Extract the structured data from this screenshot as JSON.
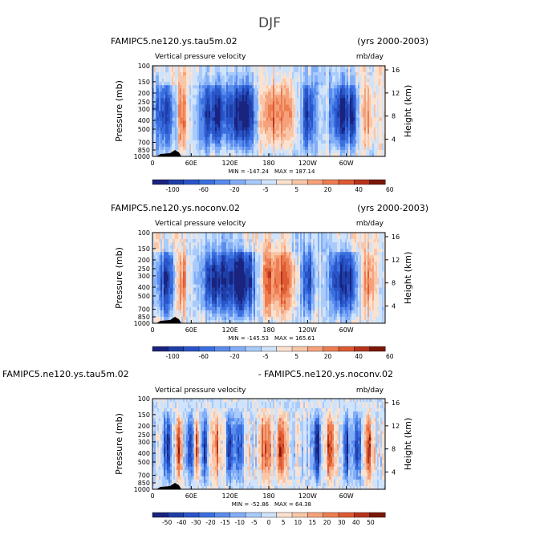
{
  "page_title": "DJF",
  "colors": {
    "full": [
      "#1a237e",
      "#1f3fa8",
      "#2a55c8",
      "#3a6fe0",
      "#5a8cee",
      "#82aef7",
      "#a9cbfb",
      "#cfe3fb",
      "#fbe2d0",
      "#f9c6a8",
      "#f5a27c",
      "#ee7e52",
      "#dd5a32",
      "#b8331c",
      "#7a1708"
    ],
    "full_levels": [
      "-100",
      "-60",
      "-20",
      "-5",
      "5",
      "20",
      "40",
      "60"
    ],
    "diff_levels": [
      "-50",
      "-40",
      "-30",
      "-20",
      "-15",
      "-10",
      "-5",
      "0",
      "5",
      "10",
      "15",
      "20",
      "30",
      "40",
      "50"
    ]
  },
  "chart_data": [
    {
      "type": "heatmap",
      "id": "panel1",
      "title_left": "FAMIPC5.ne120.ys.tau5m.02",
      "title_right": "(yrs 2000-2003)",
      "subtitle_left": "Vertical pressure velocity",
      "subtitle_right": "mb/day",
      "xlabel": "",
      "ylabel": "Pressure (mb)",
      "ylabel_right": "Height (km)",
      "x_ticks": [
        "0",
        "60E",
        "120E",
        "180",
        "120W",
        "60W"
      ],
      "y_ticks": [
        "100",
        "150",
        "200",
        "250",
        "300",
        "400",
        "500",
        "700",
        "850",
        "1000"
      ],
      "y_right_ticks": [
        "16",
        "12",
        "8",
        "4"
      ],
      "min_label": "MIN = -147.24",
      "max_label": "MAX = 187.14",
      "min": -147.24,
      "max": 187.14,
      "colorbar_labels": [
        "-100",
        "-60",
        "-20",
        "-5",
        "5",
        "20",
        "40",
        "60"
      ],
      "mode": "full"
    },
    {
      "type": "heatmap",
      "id": "panel2",
      "title_left": "FAMIPC5.ne120.ys.noconv.02",
      "title_right": "(yrs 2000-2003)",
      "subtitle_left": "Vertical pressure velocity",
      "subtitle_right": "mb/day",
      "xlabel": "",
      "ylabel": "Pressure (mb)",
      "ylabel_right": "Height (km)",
      "x_ticks": [
        "0",
        "60E",
        "120E",
        "180",
        "120W",
        "60W"
      ],
      "y_ticks": [
        "100",
        "150",
        "200",
        "250",
        "300",
        "400",
        "500",
        "700",
        "850",
        "1000"
      ],
      "y_right_ticks": [
        "16",
        "12",
        "8",
        "4"
      ],
      "min_label": "MIN = -145.53",
      "max_label": "MAX = 165.61",
      "min": -145.53,
      "max": 165.61,
      "colorbar_labels": [
        "-100",
        "-60",
        "-20",
        "-5",
        "5",
        "20",
        "40",
        "60"
      ],
      "mode": "full"
    },
    {
      "type": "heatmap",
      "id": "panel3",
      "title_left": "FAMIPC5.ne120.ys.tau5m.02",
      "title_right": "- FAMIPC5.ne120.ys.noconv.02",
      "subtitle_left": "Vertical pressure velocity",
      "subtitle_right": "mb/day",
      "xlabel": "",
      "ylabel": "Pressure (mb)",
      "ylabel_right": "Height (km)",
      "x_ticks": [
        "0",
        "60E",
        "120E",
        "180",
        "120W",
        "60W"
      ],
      "y_ticks": [
        "100",
        "150",
        "200",
        "250",
        "300",
        "400",
        "500",
        "700",
        "850",
        "1000"
      ],
      "y_right_ticks": [
        "16",
        "12",
        "8",
        "4"
      ],
      "min_label": "MIN = -52.86",
      "max_label": "MAX = 64.38",
      "min": -52.86,
      "max": 64.38,
      "colorbar_labels": [
        "-50",
        "-40",
        "-30",
        "-20",
        "-15",
        "-10",
        "-5",
        "0",
        "5",
        "10",
        "15",
        "20",
        "30",
        "40",
        "50"
      ],
      "mode": "diff"
    }
  ]
}
